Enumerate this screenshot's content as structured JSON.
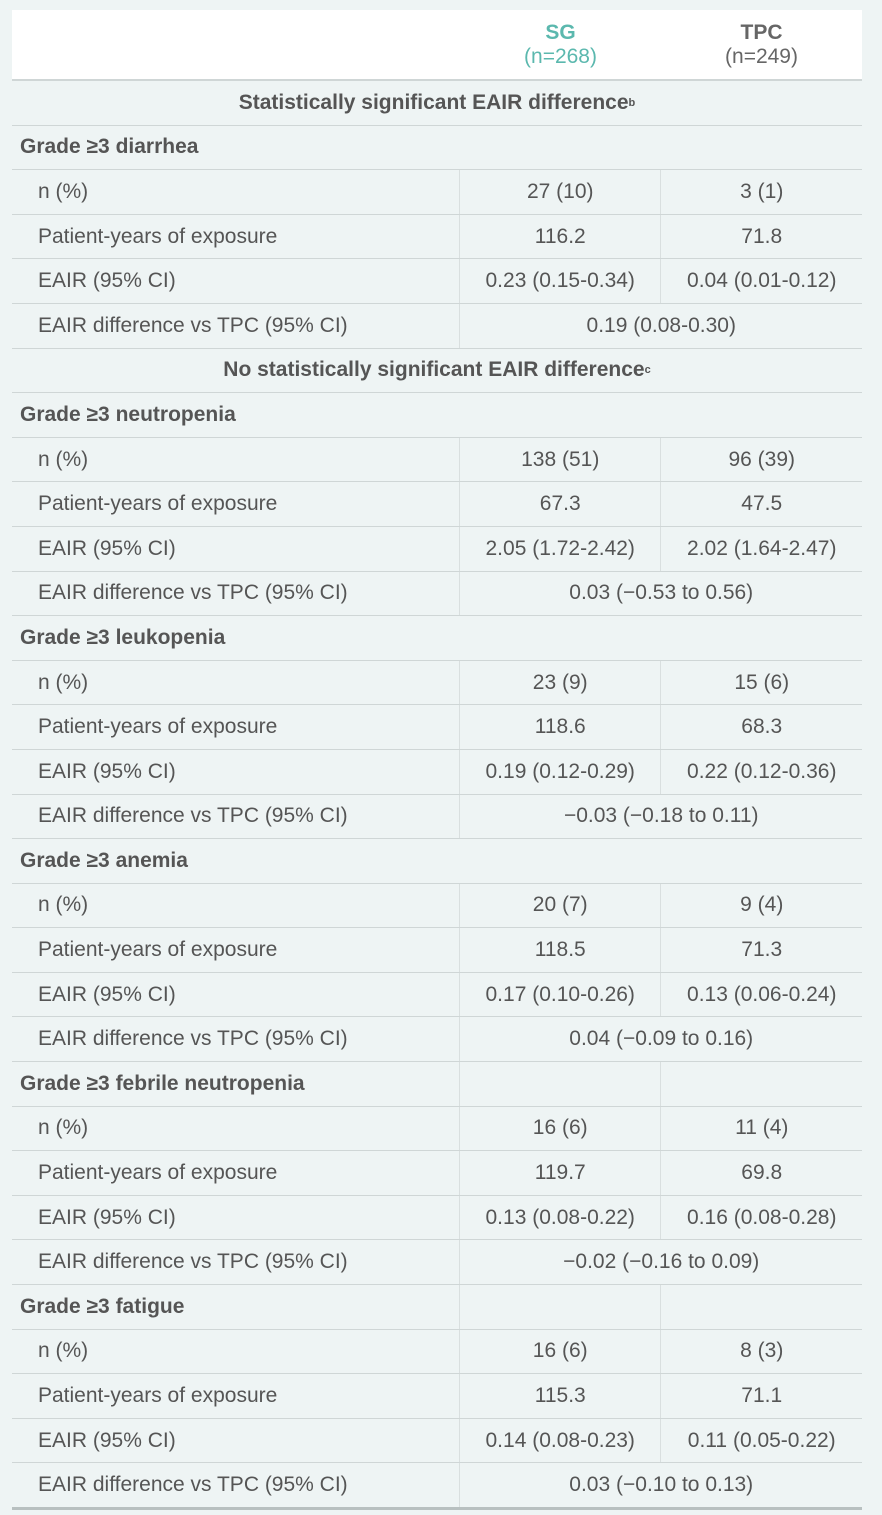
{
  "header": {
    "sg": {
      "name": "SG",
      "n": "(n=268)"
    },
    "tpc": {
      "name": "TPC",
      "n": "(n=249)"
    }
  },
  "colors": {
    "sg": "#5bb8ae",
    "text": "#555555",
    "background": "#eef4f4"
  },
  "row_labels": {
    "n": "n (%)",
    "pye": "Patient-years of exposure",
    "eair": "EAIR (95% CI)",
    "diff": "EAIR difference vs TPC (95% CI)"
  },
  "sections": [
    {
      "title": "Statistically significant EAIR difference",
      "sup": "b",
      "groups": [
        {
          "title": "Grade ≥3 diarrhea",
          "full": true,
          "n": [
            "27 (10)",
            "3 (1)"
          ],
          "pye": [
            "116.2",
            "71.8"
          ],
          "eair": [
            "0.23 (0.15-0.34)",
            "0.04 (0.01-0.12)"
          ],
          "diff": "0.19 (0.08-0.30)"
        }
      ]
    },
    {
      "title": "No statistically significant EAIR difference",
      "sup": "c",
      "groups": [
        {
          "title": "Grade ≥3 neutropenia",
          "full": true,
          "n": [
            "138 (51)",
            "96 (39)"
          ],
          "pye": [
            "67.3",
            "47.5"
          ],
          "eair": [
            "2.05 (1.72-2.42)",
            "2.02 (1.64-2.47)"
          ],
          "diff": "0.03 (−0.53 to 0.56)"
        },
        {
          "title": "Grade ≥3 leukopenia",
          "full": true,
          "n": [
            "23 (9)",
            "15 (6)"
          ],
          "pye": [
            "118.6",
            "68.3"
          ],
          "eair": [
            "0.19 (0.12-0.29)",
            "0.22 (0.12-0.36)"
          ],
          "diff": "−0.03 (−0.18 to 0.11)"
        },
        {
          "title": "Grade ≥3 anemia",
          "full": true,
          "n": [
            "20 (7)",
            "9 (4)"
          ],
          "pye": [
            "118.5",
            "71.3"
          ],
          "eair": [
            "0.17 (0.10-0.26)",
            "0.13 (0.06-0.24)"
          ],
          "diff": "0.04 (−0.09 to 0.16)"
        },
        {
          "title": "Grade ≥3 febrile neutropenia",
          "full": false,
          "n": [
            "16 (6)",
            "11 (4)"
          ],
          "pye": [
            "119.7",
            "69.8"
          ],
          "eair": [
            "0.13 (0.08-0.22)",
            "0.16 (0.08-0.28)"
          ],
          "diff": "−0.02 (−0.16 to 0.09)"
        },
        {
          "title": "Grade ≥3 fatigue",
          "full": false,
          "n": [
            "16 (6)",
            "8 (3)"
          ],
          "pye": [
            "115.3",
            "71.1"
          ],
          "eair": [
            "0.14 (0.08-0.23)",
            "0.11 (0.05-0.22)"
          ],
          "diff": "0.03 (−0.10 to 0.13)"
        }
      ]
    }
  ]
}
